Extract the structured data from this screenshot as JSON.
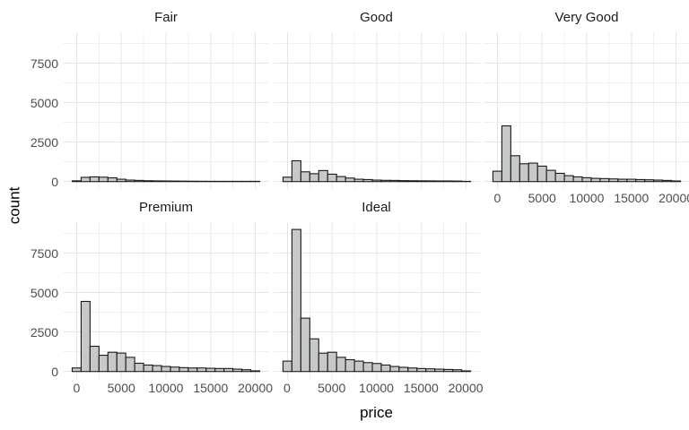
{
  "figure": {
    "xlabel": "price",
    "ylabel": "count",
    "colors": {
      "background": "#ffffff",
      "bar_fill": "#c7c9c9",
      "bar_stroke": "#1a1a1a",
      "grid_major": "#e5e5e5",
      "grid_minor": "#f0f0f0",
      "tick_label": "#4d4d4d",
      "facet_title": "#1a1a1a",
      "axis_title": "#000000"
    }
  },
  "chart_data": {
    "type": "bar",
    "subtype": "faceted-histogram",
    "title": "",
    "xlabel": "price",
    "ylabel": "count",
    "facet_levels": [
      "Fair",
      "Good",
      "Very Good",
      "Premium",
      "Ideal"
    ],
    "bin_width": 1000,
    "bin_centers": [
      0,
      1000,
      2000,
      3000,
      4000,
      5000,
      6000,
      7000,
      8000,
      9000,
      10000,
      11000,
      12000,
      13000,
      14000,
      15000,
      16000,
      17000,
      18000,
      19000,
      20000
    ],
    "x_ticks": [
      0,
      5000,
      10000,
      15000,
      20000
    ],
    "x_tick_labels": [
      "0",
      "5000",
      "10000",
      "15000",
      "20000"
    ],
    "x_minor_ticks": [
      2500,
      7500,
      12500,
      17500
    ],
    "y_ticks": [
      0,
      2500,
      5000,
      7500
    ],
    "y_tick_labels": [
      "0",
      "2500",
      "5000",
      "7500"
    ],
    "y_minor_ticks": [
      1250,
      3750,
      6250,
      8750
    ],
    "xlim": [
      -1550,
      21550
    ],
    "ylim": [
      -470,
      9460
    ],
    "grid": true,
    "legend": false,
    "facets": [
      {
        "label": "Fair",
        "row": 0,
        "col": 0,
        "show_x_axis": false,
        "show_y_axis": true,
        "counts": [
          50,
          270,
          300,
          280,
          240,
          150,
          95,
          75,
          55,
          45,
          40,
          35,
          30,
          25,
          20,
          18,
          15,
          12,
          10,
          8,
          5
        ]
      },
      {
        "label": "Good",
        "row": 0,
        "col": 1,
        "show_x_axis": false,
        "show_y_axis": false,
        "counts": [
          280,
          1320,
          620,
          500,
          700,
          470,
          320,
          225,
          150,
          130,
          95,
          80,
          75,
          60,
          55,
          50,
          45,
          40,
          40,
          35,
          15
        ]
      },
      {
        "label": "Very Good",
        "row": 0,
        "col": 2,
        "show_x_axis": true,
        "show_y_axis": false,
        "counts": [
          660,
          3530,
          1640,
          1130,
          1170,
          980,
          715,
          525,
          375,
          300,
          245,
          205,
          190,
          170,
          150,
          150,
          130,
          115,
          95,
          75,
          40
        ]
      },
      {
        "label": "Premium",
        "row": 1,
        "col": 0,
        "show_x_axis": true,
        "show_y_axis": true,
        "counts": [
          225,
          4440,
          1600,
          1030,
          1220,
          1170,
          900,
          525,
          410,
          375,
          320,
          280,
          245,
          225,
          225,
          205,
          190,
          190,
          150,
          115,
          40
        ]
      },
      {
        "label": "Ideal",
        "row": 1,
        "col": 1,
        "show_x_axis": true,
        "show_y_axis": false,
        "counts": [
          660,
          9000,
          3380,
          2070,
          1165,
          1220,
          900,
          750,
          660,
          565,
          510,
          410,
          320,
          265,
          225,
          190,
          170,
          150,
          130,
          115,
          40
        ]
      }
    ]
  }
}
